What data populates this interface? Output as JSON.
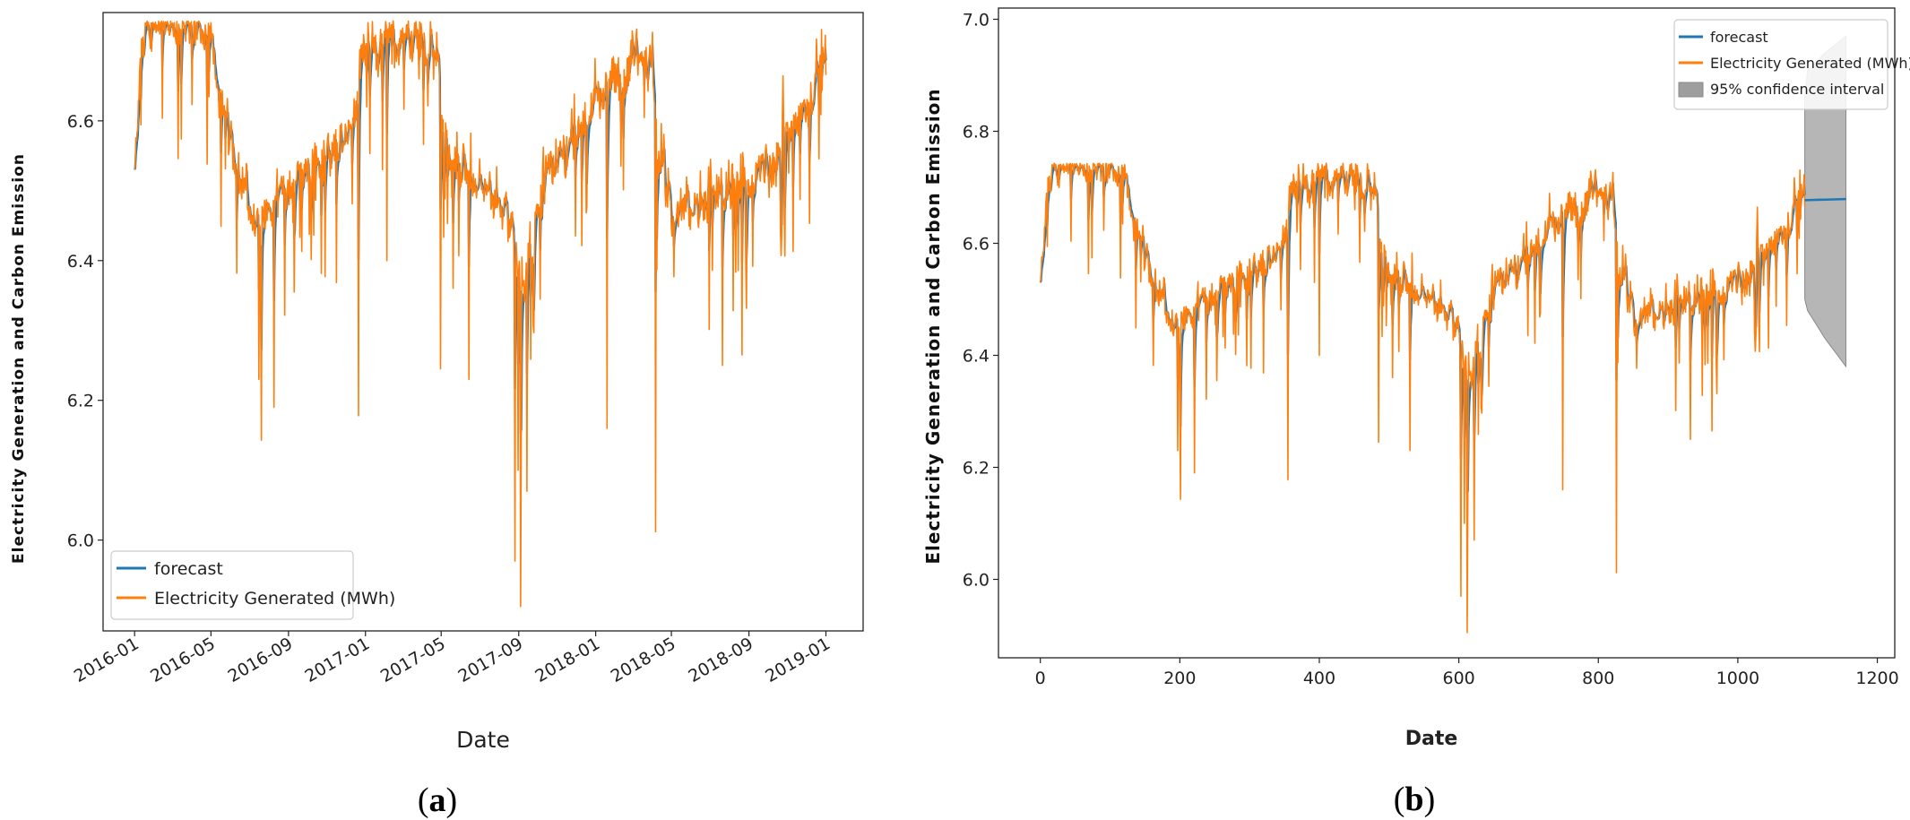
{
  "colors": {
    "forecast": "#1f77b4",
    "actual": "#ff7f0e",
    "ci": "#9e9e9e"
  },
  "chart_data": [
    {
      "panel": "a",
      "panel_label_left": "(",
      "panel_label_letter": "a",
      "panel_label_right": ")",
      "type": "line",
      "xlabel": "Date",
      "ylabel": "Electricity Generation and Carbon Emission",
      "x_ticks": [
        "2016-01",
        "2016-05",
        "2016-09",
        "2017-01",
        "2017-05",
        "2017-09",
        "2018-01",
        "2018-05",
        "2018-09",
        "2019-01"
      ],
      "y_ticks": [
        "6.0",
        "6.2",
        "6.4",
        "6.6"
      ],
      "xlim": [
        "2015-11-12",
        "2019-03-01"
      ],
      "ylim": [
        5.87,
        6.755
      ],
      "grid": false,
      "legend_position": "lower-left",
      "series": [
        {
          "name": "forecast",
          "color": "#1f77b4"
        },
        {
          "name": "Electricity Generated (MWh)",
          "color": "#ff7f0e"
        }
      ],
      "date_range": [
        "2016-01-01",
        "2019-01-01"
      ],
      "n_points": 1097,
      "baseline_shape_x": [
        0,
        10,
        20,
        40,
        80,
        120,
        130,
        150,
        170,
        185,
        200,
        260,
        300,
        340,
        360,
        370,
        400,
        460,
        480,
        490,
        500,
        550,
        580,
        600,
        615,
        630,
        650,
        700,
        750,
        780,
        800,
        820,
        830,
        850,
        880,
        930,
        1000,
        1030,
        1060,
        1080,
        1096
      ],
      "baseline_shape_y": [
        6.53,
        6.7,
        6.73,
        6.74,
        6.73,
        6.72,
        6.66,
        6.58,
        6.5,
        6.47,
        6.46,
        6.52,
        6.55,
        6.58,
        6.68,
        6.71,
        6.71,
        6.71,
        6.71,
        6.6,
        6.54,
        6.5,
        6.48,
        6.42,
        6.38,
        6.4,
        6.52,
        6.58,
        6.65,
        6.67,
        6.7,
        6.68,
        6.55,
        6.48,
        6.47,
        6.49,
        6.53,
        6.57,
        6.6,
        6.66,
        6.7
      ],
      "dip_events": [
        {
          "date": "2016-07-18",
          "value": 6.143
        },
        {
          "date": "2016-07-11",
          "value": 6.23
        },
        {
          "date": "2016-08-10",
          "value": 6.19
        },
        {
          "date": "2016-12-21",
          "value": 6.178
        },
        {
          "date": "2017-02-08",
          "value": 6.4
        },
        {
          "date": "2017-05-08",
          "value": 6.245
        },
        {
          "date": "2017-06-15",
          "value": 6.23
        },
        {
          "date": "2017-08-29",
          "value": 5.97
        },
        {
          "date": "2017-09-05",
          "value": 5.905
        },
        {
          "date": "2017-09-02",
          "value": 6.1
        },
        {
          "date": "2017-09-15",
          "value": 6.07
        },
        {
          "date": "2018-01-18",
          "value": 6.16
        },
        {
          "date": "2018-04-05",
          "value": 6.012
        },
        {
          "date": "2018-07-20",
          "value": 6.25
        },
        {
          "date": "2018-08-20",
          "value": 6.265
        }
      ]
    },
    {
      "panel": "b",
      "panel_label_left": "(",
      "panel_label_letter": "b",
      "panel_label_right": ")",
      "type": "line",
      "xlabel": "Date",
      "ylabel": "Electricity Generation and Carbon Emission",
      "x_ticks": [
        0,
        200,
        400,
        600,
        800,
        1000,
        1200
      ],
      "x_tick_labels": [
        "0",
        "200",
        "400",
        "600",
        "800",
        "1000",
        "1200"
      ],
      "y_ticks": [
        "6.0",
        "6.2",
        "6.4",
        "6.6",
        "6.8",
        "7.0"
      ],
      "xlim": [
        -60,
        1225
      ],
      "ylim": [
        5.86,
        7.02
      ],
      "grid": false,
      "legend_position": "top-right",
      "series": [
        {
          "name": "forecast",
          "color": "#1f77b4"
        },
        {
          "name": "Electricity Generated (MWh)",
          "color": "#ff7f0e"
        },
        {
          "name": "95% confidence interval",
          "color": "#9e9e9e"
        }
      ],
      "n_points": 1097,
      "forecast_extension": {
        "x": [
          1096,
          1155
        ],
        "y": [
          6.677,
          6.679
        ]
      },
      "confidence_interval": {
        "x": [
          1096,
          1100,
          1110,
          1125,
          1140,
          1155
        ],
        "upper": [
          6.86,
          6.91,
          6.92,
          6.94,
          6.955,
          6.97
        ],
        "lower": [
          6.5,
          6.48,
          6.46,
          6.43,
          6.405,
          6.38
        ]
      },
      "dip_events": [
        {
          "x": 201,
          "value": 6.143
        },
        {
          "x": 197,
          "value": 6.23
        },
        {
          "x": 221,
          "value": 6.19
        },
        {
          "x": 355,
          "value": 6.178
        },
        {
          "x": 400,
          "value": 6.4
        },
        {
          "x": 485,
          "value": 6.245
        },
        {
          "x": 530,
          "value": 6.23
        },
        {
          "x": 603,
          "value": 5.97
        },
        {
          "x": 612,
          "value": 5.905
        },
        {
          "x": 608,
          "value": 6.1
        },
        {
          "x": 622,
          "value": 6.07
        },
        {
          "x": 749,
          "value": 6.16
        },
        {
          "x": 826,
          "value": 6.012
        },
        {
          "x": 932,
          "value": 6.25
        },
        {
          "x": 963,
          "value": 6.265
        }
      ]
    }
  ]
}
